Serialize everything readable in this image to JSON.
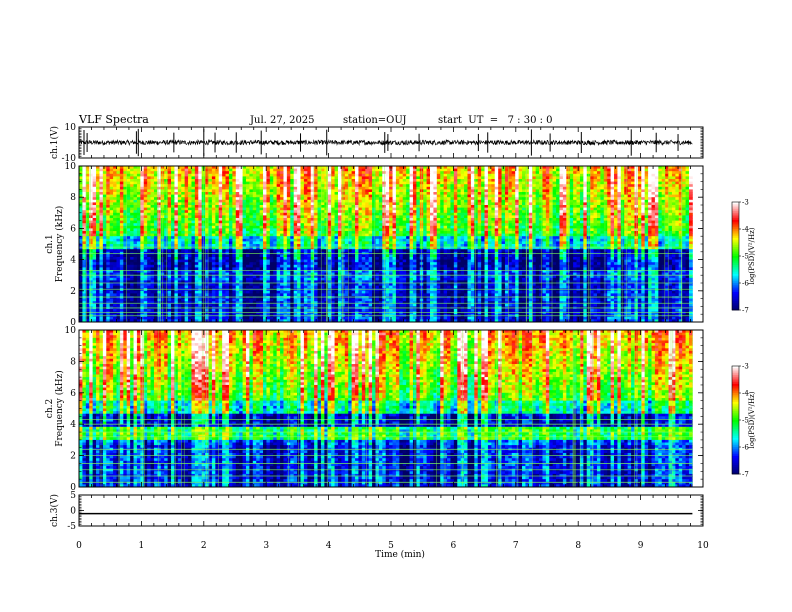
{
  "header": {
    "title": "VLF Spectra",
    "date": "Jul. 27, 2025",
    "station": "station=OUJ",
    "start_ut": "start  UT  =   7 : 30 : 0"
  },
  "chart_data": [
    {
      "type": "line",
      "name": "ch1-waveform",
      "ylabel": "ch.1(V)",
      "ylim": [
        -10,
        10
      ],
      "yticks": [
        10,
        -10
      ],
      "xlim": [
        0,
        10
      ],
      "baseline": 0,
      "noise_amplitude": 1.5,
      "spike_times": [
        0.08,
        0.13,
        0.92,
        0.95,
        1.52,
        2.0,
        2.18,
        2.52,
        2.92,
        3.55,
        3.97,
        4.9,
        4.95,
        5.45,
        6.4,
        6.55,
        7.25,
        7.55,
        8.05,
        8.85,
        9.25,
        9.6
      ]
    },
    {
      "type": "heatmap",
      "name": "ch1-spectrogram",
      "ylabel": "ch.1\nFrequency (kHz)",
      "ylim": [
        0,
        10
      ],
      "yticks": [
        0,
        2,
        4,
        6,
        8,
        10
      ],
      "xlim": [
        0,
        9.83
      ],
      "colorbar": {
        "label": "log(PSD)(V²/Hz)",
        "range": [
          -7,
          -3
        ],
        "ticks": [
          -3,
          -4,
          -5,
          -6,
          -7
        ]
      },
      "band_freqs_khz": [
        0.4,
        0.6,
        0.9,
        1.2,
        1.6,
        2.1,
        2.5,
        3.0,
        3.3,
        4.4,
        4.8
      ]
    },
    {
      "type": "heatmap",
      "name": "ch2-spectrogram",
      "ylabel": "ch.2\nFrequency (kHz)",
      "ylim": [
        0,
        10
      ],
      "yticks": [
        0,
        2,
        4,
        6,
        8,
        10
      ],
      "xlim": [
        0,
        9.83
      ],
      "colorbar": {
        "label": "log(PSD)(V²/Hz)",
        "range": [
          -7,
          -3
        ],
        "ticks": [
          -3,
          -4,
          -5,
          -6,
          -7
        ]
      },
      "band_freqs_khz": [
        0.3,
        0.7,
        1.1,
        1.5,
        2.0,
        2.4,
        3.2,
        3.5,
        4.0,
        4.3
      ]
    },
    {
      "type": "line",
      "name": "ch3-waveform",
      "ylabel": "ch.3(V)",
      "ylim": [
        -5,
        5
      ],
      "yticks": [
        5,
        0,
        -5
      ],
      "xlim": [
        0,
        10
      ],
      "values": [
        -1,
        -1
      ]
    }
  ],
  "xaxis": {
    "label": "Time (min)",
    "ticks": [
      0,
      1,
      2,
      3,
      4,
      5,
      6,
      7,
      8,
      9,
      10
    ]
  },
  "colors": {
    "colormap": [
      "#000066",
      "#0000ff",
      "#00ffff",
      "#00ff00",
      "#ffff00",
      "#ff0000",
      "#ffffff"
    ]
  }
}
